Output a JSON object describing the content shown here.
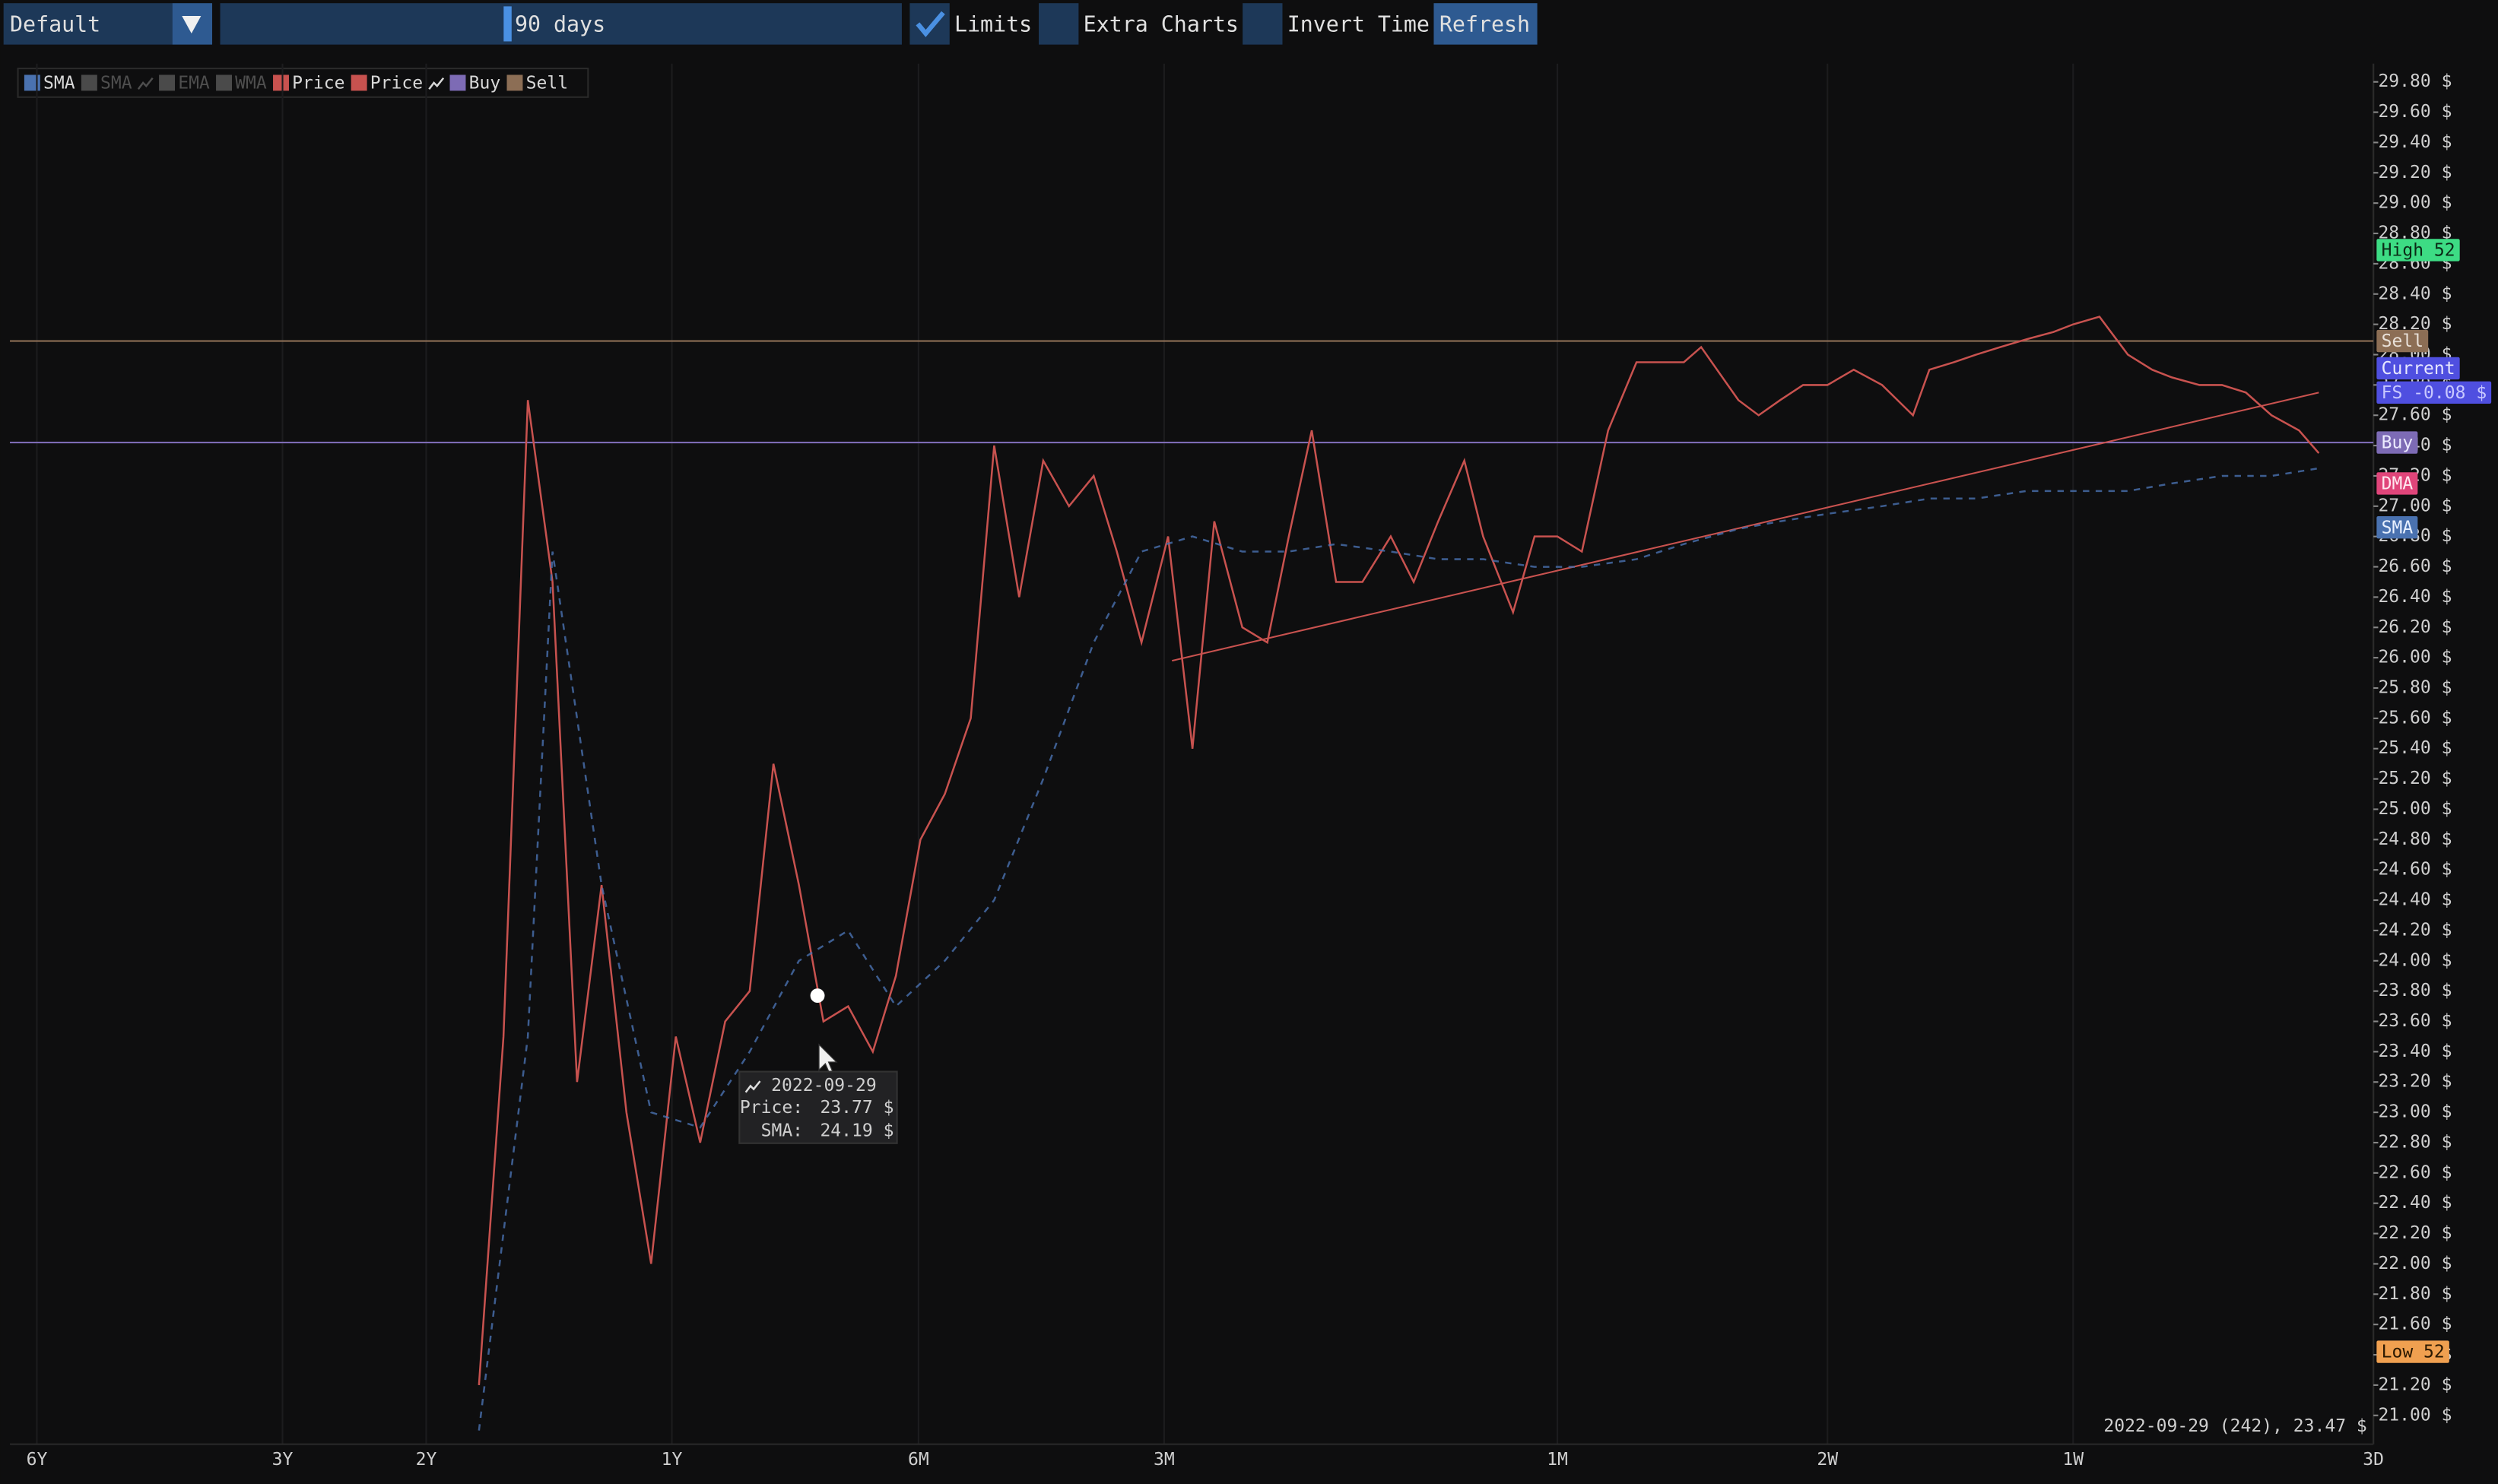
{
  "toolbar": {
    "preset": "Default",
    "range": "90 days",
    "checks": [
      {
        "label": "Limits",
        "checked": true
      },
      {
        "label": "Extra Charts",
        "checked": false
      },
      {
        "label": "Invert Time",
        "checked": false
      }
    ],
    "refresh": "Refresh"
  },
  "legend_items": [
    {
      "label": "SMA",
      "color": "#4a72b0",
      "enabled": true,
      "icon": false
    },
    {
      "label": "SMA",
      "color": "#4a4a4a",
      "enabled": false,
      "icon": true
    },
    {
      "label": "EMA",
      "color": "#4a4a4a",
      "enabled": false,
      "icon": false
    },
    {
      "label": "WMA",
      "color": "#4a4a4a",
      "enabled": false,
      "icon": false
    },
    {
      "label": "Price",
      "color": "#c8524f",
      "enabled": true,
      "icon": false
    },
    {
      "label": "Price",
      "color": "#c8524f",
      "enabled": true,
      "icon": true
    },
    {
      "label": "Buy",
      "color": "#7d6bb5",
      "enabled": true,
      "icon": false
    },
    {
      "label": "Sell",
      "color": "#8c6e55",
      "enabled": true,
      "icon": false
    }
  ],
  "chart_data": {
    "type": "line",
    "xscale": "log",
    "xlim": [
      2363,
      3
    ],
    "xgrid": true,
    "xticks": [
      {
        "value": 2190,
        "label": "6Y"
      },
      {
        "value": 1095,
        "label": "3Y"
      },
      {
        "value": 730,
        "label": "2Y"
      },
      {
        "value": 365,
        "label": "1Y"
      },
      {
        "value": 182,
        "label": "6M"
      },
      {
        "value": 91,
        "label": "3M"
      },
      {
        "value": 30,
        "label": "1M"
      },
      {
        "value": 14,
        "label": "2W"
      },
      {
        "value": 7,
        "label": "1W"
      },
      {
        "value": 3,
        "label": "3D"
      }
    ],
    "ylim": [
      20.81,
      29.92
    ],
    "yticks": [
      {
        "value": 21.0,
        "label": "21.00 $"
      },
      {
        "value": 21.2,
        "label": "21.20 $"
      },
      {
        "value": 21.4,
        "label": "21.40 $"
      },
      {
        "value": 21.6,
        "label": "21.60 $"
      },
      {
        "value": 21.8,
        "label": "21.80 $"
      },
      {
        "value": 22.0,
        "label": "22.00 $"
      },
      {
        "value": 22.2,
        "label": "22.20 $"
      },
      {
        "value": 22.4,
        "label": "22.40 $"
      },
      {
        "value": 22.6,
        "label": "22.60 $"
      },
      {
        "value": 22.8,
        "label": "22.80 $"
      },
      {
        "value": 23.0,
        "label": "23.00 $"
      },
      {
        "value": 23.2,
        "label": "23.20 $"
      },
      {
        "value": 23.4,
        "label": "23.40 $"
      },
      {
        "value": 23.6,
        "label": "23.60 $"
      },
      {
        "value": 23.8,
        "label": "23.80 $"
      },
      {
        "value": 24.0,
        "label": "24.00 $"
      },
      {
        "value": 24.2,
        "label": "24.20 $"
      },
      {
        "value": 24.4,
        "label": "24.40 $"
      },
      {
        "value": 24.6,
        "label": "24.60 $"
      },
      {
        "value": 24.8,
        "label": "24.80 $"
      },
      {
        "value": 25.0,
        "label": "25.00 $"
      },
      {
        "value": 25.2,
        "label": "25.20 $"
      },
      {
        "value": 25.4,
        "label": "25.40 $"
      },
      {
        "value": 25.6,
        "label": "25.60 $"
      },
      {
        "value": 25.8,
        "label": "25.80 $"
      },
      {
        "value": 26.0,
        "label": "26.00 $"
      },
      {
        "value": 26.2,
        "label": "26.20 $"
      },
      {
        "value": 26.4,
        "label": "26.40 $"
      },
      {
        "value": 26.6,
        "label": "26.60 $"
      },
      {
        "value": 26.8,
        "label": "26.80 $"
      },
      {
        "value": 27.0,
        "label": "27.00 $"
      },
      {
        "value": 27.2,
        "label": "27.20 $"
      },
      {
        "value": 27.4,
        "label": "27.40 $"
      },
      {
        "value": 27.6,
        "label": "27.60 $"
      },
      {
        "value": 27.8,
        "label": "27.80 $"
      },
      {
        "value": 28.0,
        "label": "28.00 $"
      },
      {
        "value": 28.2,
        "label": "28.20 $"
      },
      {
        "value": 28.4,
        "label": "28.40 $"
      },
      {
        "value": 28.6,
        "label": "28.60 $"
      },
      {
        "value": 28.8,
        "label": "28.80 $"
      },
      {
        "value": 29.0,
        "label": "29.00 $"
      },
      {
        "value": 29.2,
        "label": "29.20 $"
      },
      {
        "value": 29.4,
        "label": "29.40 $"
      },
      {
        "value": 29.6,
        "label": "29.60 $"
      },
      {
        "value": 29.8,
        "label": "29.80 $"
      }
    ],
    "series": [
      {
        "name": "Price",
        "color": "#c8524f",
        "dashed": false,
        "x": [
          629,
          587,
          548,
          511,
          477,
          445,
          415,
          387,
          361,
          337,
          314,
          293,
          274,
          255,
          238,
          222,
          207,
          194,
          181,
          169,
          157,
          147,
          137,
          128,
          119,
          111,
          104,
          97,
          90,
          84,
          79,
          73,
          68,
          64,
          60,
          56,
          52,
          48,
          45,
          42,
          39,
          37,
          34,
          32,
          30,
          28,
          26,
          24,
          23,
          21,
          20,
          18,
          17,
          16,
          15,
          14,
          13,
          12,
          11,
          10.5,
          9.8,
          9.2,
          8.6,
          8.0,
          7.4,
          7.0,
          6.5,
          6.0,
          5.6,
          5.3,
          4.9,
          4.6,
          4.3,
          4.0,
          3.7,
          3.5
        ],
        "values": [
          21.2,
          23.5,
          27.7,
          26.5,
          23.2,
          24.5,
          23.0,
          22.0,
          23.5,
          22.8,
          23.6,
          23.8,
          25.3,
          24.5,
          23.6,
          23.7,
          23.4,
          23.9,
          24.8,
          25.1,
          25.6,
          27.4,
          26.4,
          27.3,
          27.0,
          27.2,
          26.7,
          26.1,
          26.8,
          25.4,
          26.9,
          26.2,
          26.1,
          26.8,
          27.5,
          26.5,
          26.5,
          26.8,
          26.5,
          26.9,
          27.3,
          26.8,
          26.3,
          26.8,
          26.8,
          26.7,
          27.5,
          27.95,
          27.95,
          27.95,
          28.05,
          27.7,
          27.6,
          27.7,
          27.8,
          27.8,
          27.9,
          27.8,
          27.6,
          27.9,
          27.95,
          28.0,
          28.05,
          28.1,
          28.15,
          28.2,
          28.25,
          28.0,
          27.9,
          27.85,
          27.8,
          27.8,
          27.75,
          27.6,
          27.5,
          27.35
        ]
      },
      {
        "name": "SMA",
        "color": "#4a72b0",
        "dashed": true,
        "x": [
          629,
          548,
          511,
          445,
          387,
          337,
          293,
          255,
          222,
          194,
          169,
          147,
          128,
          111,
          97,
          84,
          73,
          64,
          56,
          48,
          42,
          37,
          32,
          28,
          24,
          21,
          18,
          16,
          14,
          12,
          10.5,
          9.2,
          8.0,
          7.0,
          6.0,
          5.3,
          4.6,
          4.0,
          3.5
        ],
        "values": [
          20.9,
          23.5,
          26.7,
          24.5,
          23.0,
          22.9,
          23.4,
          24.0,
          24.2,
          23.7,
          24.0,
          24.4,
          25.2,
          26.1,
          26.7,
          26.8,
          26.7,
          26.7,
          26.75,
          26.7,
          26.65,
          26.65,
          26.6,
          26.6,
          26.65,
          26.75,
          26.85,
          26.9,
          26.95,
          27.0,
          27.05,
          27.05,
          27.1,
          27.1,
          27.1,
          27.15,
          27.2,
          27.2,
          27.25
        ]
      }
    ],
    "trend": {
      "color": "#c8524f",
      "x": [
        89,
        3.5
      ],
      "values": [
        25.98,
        27.75
      ]
    },
    "levels": [
      {
        "name": "High 52",
        "value": 28.69,
        "color": "#3ddc84",
        "text_color": "#0b2a16",
        "line": false
      },
      {
        "name": "Sell",
        "value": 28.09,
        "color": "#8c6e55",
        "text_color": "#e8e0d8",
        "line": true
      },
      {
        "name": "Current",
        "value": 27.91,
        "color": "#4f4fe0",
        "text_color": "#e8e8ff",
        "line": false
      },
      {
        "name": "FS -0.08 $",
        "value": 27.75,
        "color": "#4f4fe0",
        "text_color": "#c8c8ff",
        "line": false
      },
      {
        "name": "Buy",
        "value": 27.42,
        "color": "#7d6bb5",
        "text_color": "#ecebff",
        "line": true
      },
      {
        "name": "DMA",
        "value": 27.15,
        "color": "#e0457a",
        "text_color": "#ffe8f0",
        "line": false
      },
      {
        "name": "SMA",
        "value": 26.86,
        "color": "#4a72b0",
        "text_color": "#e8f0ff",
        "line": false
      },
      {
        "name": "Low 52",
        "value": 21.42,
        "color": "#f0a050",
        "text_color": "#2a1800",
        "line": false
      }
    ],
    "tooltip": {
      "title": "2022-09-29",
      "x": 242,
      "y": 23.77,
      "rows": [
        "Price:",
        "SMA:"
      ],
      "values": [
        23.77,
        24.19
      ],
      "value_labels": [
        "23.77 $",
        "24.19 $"
      ]
    },
    "status": "2022-09-29 (242), 23.47 $"
  }
}
